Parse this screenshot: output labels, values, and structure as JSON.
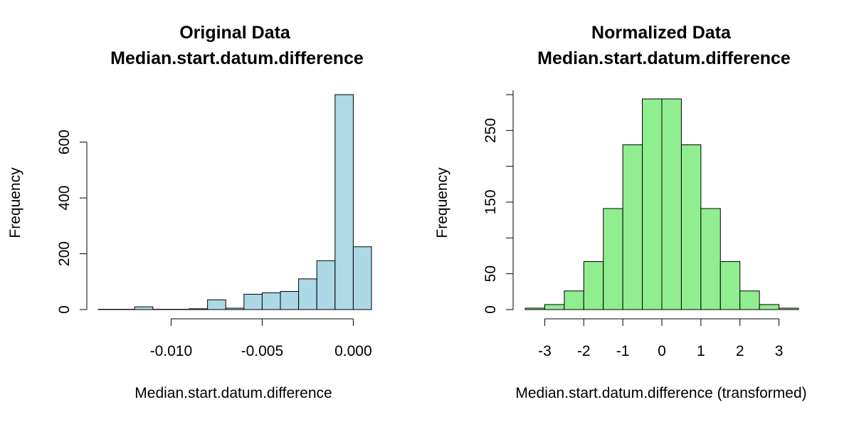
{
  "chart_data": [
    {
      "type": "bar",
      "title": "Original Data",
      "subtitle": "Median.start.datum.difference",
      "xlabel": "Median.start.datum.difference",
      "ylabel": "Frequency",
      "bar_color": "#add8e6",
      "xlim": [
        -0.014,
        0.001
      ],
      "ylim": [
        0,
        770
      ],
      "bin_width": 0.001,
      "bins_start": [
        -0.014,
        -0.013,
        -0.012,
        -0.011,
        -0.01,
        -0.009,
        -0.008,
        -0.007,
        -0.006,
        -0.005,
        -0.004,
        -0.003,
        -0.002,
        -0.001,
        0.0
      ],
      "values": [
        1,
        1,
        10,
        1,
        1,
        3,
        35,
        5,
        55,
        60,
        65,
        110,
        175,
        770,
        225
      ],
      "x_ticks": [
        -0.01,
        -0.005,
        0.0
      ],
      "x_tick_labels": [
        "-0.010",
        "-0.005",
        "0.000"
      ],
      "y_ticks": [
        0,
        200,
        400,
        600
      ],
      "y_tick_labels": [
        "0",
        "200",
        "400",
        "600"
      ],
      "grid": false
    },
    {
      "type": "bar",
      "title": "Normalized Data",
      "subtitle": "Median.start.datum.difference",
      "xlabel": "Median.start.datum.difference (transformed)",
      "ylabel": "Frequency",
      "bar_color": "#90ee90",
      "xlim": [
        -3.5,
        3.5
      ],
      "ylim": [
        0,
        300
      ],
      "bin_width": 0.5,
      "bins_start": [
        -3.5,
        -3.0,
        -2.5,
        -2.0,
        -1.5,
        -1.0,
        -0.5,
        0.0,
        0.5,
        1.0,
        1.5,
        2.0,
        2.5,
        3.0
      ],
      "values": [
        2,
        7,
        26,
        67,
        141,
        230,
        294,
        294,
        230,
        141,
        67,
        26,
        7,
        2
      ],
      "x_ticks": [
        -3,
        -2,
        -1,
        0,
        1,
        2,
        3
      ],
      "x_tick_labels": [
        "-3",
        "-2",
        "-1",
        "0",
        "1",
        "2",
        "3"
      ],
      "y_ticks": [
        0,
        50,
        150,
        250
      ],
      "y_tick_labels": [
        "0",
        "50",
        "150",
        "250"
      ],
      "grid": false
    }
  ]
}
